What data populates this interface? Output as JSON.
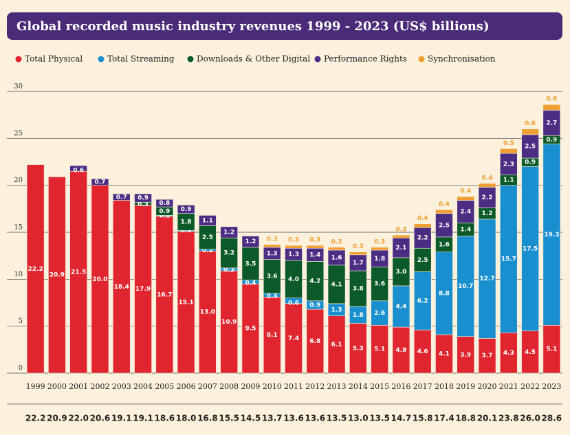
{
  "chart_data": {
    "type": "stacked_bar",
    "title": "Global recorded music industry revenues 1999 - 2023 (US$ billions)",
    "categories": [
      "1999",
      "2000",
      "2001",
      "2002",
      "2003",
      "2004",
      "2005",
      "2006",
      "2007",
      "2008",
      "2009",
      "2010",
      "2011",
      "2012",
      "2013",
      "2014",
      "2015",
      "2016",
      "2017",
      "2018",
      "2019",
      "2020",
      "2021",
      "2022",
      "2023"
    ],
    "series": [
      {
        "name": "Total Physical",
        "color": "#e0252f",
        "values": [
          22.2,
          20.9,
          21.5,
          20.0,
          18.4,
          17.9,
          16.7,
          15.1,
          13.0,
          10.9,
          9.5,
          8.1,
          7.4,
          6.8,
          6.1,
          5.3,
          5.1,
          4.9,
          4.6,
          4.1,
          3.9,
          3.7,
          4.3,
          4.5,
          5.1
        ],
        "value_labels": [
          "22.2",
          "20.9",
          "21.5",
          "20.0",
          "18.4",
          "17.9",
          "16.7",
          "15.1",
          "13.0",
          "10.9",
          "9.5",
          "8.1",
          "7.4",
          "6.8",
          "6.1",
          "5.3",
          "5.1",
          "4.9",
          "4.6",
          "4.1",
          "3.9",
          "3.7",
          "4.3",
          "4.5",
          "5.1"
        ]
      },
      {
        "name": "Total Streaming",
        "color": "#1a8fd0",
        "values": [
          null,
          null,
          null,
          null,
          null,
          null,
          0.1,
          0.1,
          0.2,
          0.3,
          0.4,
          0.4,
          0.6,
          0.9,
          1.3,
          1.8,
          2.6,
          4.4,
          6.2,
          8.8,
          10.7,
          12.7,
          15.7,
          17.5,
          19.3
        ],
        "value_labels": [
          null,
          null,
          null,
          null,
          null,
          null,
          "0.1",
          "0.1",
          "0.2",
          "0.3",
          "0.4",
          "0.4",
          "0.6",
          "0.9",
          "1.3",
          "1.8",
          "2.6",
          "4.4",
          "6.2",
          "8.8",
          "10.7",
          "12.7",
          "15.7",
          "17.5",
          "19.3"
        ]
      },
      {
        "name": "Downloads & Other Digital",
        "color": "#0c5a2a",
        "values": [
          null,
          null,
          null,
          null,
          null,
          0.3,
          0.9,
          1.8,
          2.5,
          3.2,
          3.5,
          3.6,
          4.0,
          4.2,
          4.1,
          3.8,
          3.6,
          3.0,
          2.5,
          1.6,
          1.4,
          1.2,
          1.1,
          0.9,
          0.9
        ],
        "value_labels": [
          null,
          null,
          null,
          null,
          null,
          "0.3",
          "0.9",
          "1.8",
          "2.5",
          "3.2",
          "3.5",
          "3.6",
          "4.0",
          "4.2",
          "4.1",
          "3.8",
          "3.6",
          "3.0",
          "2.5",
          "1.6",
          "1.4",
          "1.2",
          "1.1",
          "0.9",
          "0.9"
        ]
      },
      {
        "name": "Performance Rights",
        "color": "#4b2e84",
        "values": [
          null,
          null,
          0.6,
          0.7,
          0.7,
          0.9,
          0.8,
          0.9,
          1.1,
          1.2,
          1.2,
          1.3,
          1.3,
          1.4,
          1.6,
          1.7,
          1.8,
          2.1,
          2.2,
          2.5,
          2.4,
          2.2,
          2.3,
          2.5,
          2.7
        ],
        "value_labels": [
          null,
          null,
          "0.6",
          "0.7",
          "0.7",
          "0.9",
          "0.8",
          "0.9",
          "1.1",
          "1.2",
          "1.2",
          "1.3",
          "1.3",
          "1.4",
          "1.6",
          "1.7",
          "1.8",
          "2.1",
          "2.2",
          "2.5",
          "2.4",
          "2.2",
          "2.3",
          "2.5",
          "2.7"
        ]
      },
      {
        "name": "Synchronisation",
        "color": "#f0a032",
        "values": [
          null,
          null,
          null,
          null,
          null,
          null,
          null,
          null,
          null,
          null,
          null,
          0.3,
          0.3,
          0.3,
          0.3,
          0.3,
          0.3,
          0.3,
          0.4,
          0.4,
          0.4,
          0.4,
          0.5,
          0.6,
          0.6
        ],
        "value_labels": [
          null,
          null,
          null,
          null,
          null,
          null,
          null,
          null,
          null,
          null,
          null,
          "0.3",
          "0.3",
          "0.3",
          "0.3",
          "0.3",
          "0.3",
          "0.3",
          "0.4",
          "0.4",
          "0.4",
          "0.4",
          "0.5",
          "0.6",
          "0.6"
        ]
      }
    ],
    "totals": [
      22.2,
      20.9,
      22.0,
      20.6,
      19.1,
      19.1,
      18.6,
      18.0,
      16.8,
      15.5,
      14.5,
      13.7,
      13.6,
      13.6,
      13.5,
      13.0,
      13.5,
      14.7,
      15.8,
      17.4,
      18.8,
      20.1,
      23.8,
      26.0,
      28.6
    ],
    "total_labels": [
      "22.2",
      "20.9",
      "22.0",
      "20.6",
      "19.1",
      "19.1",
      "18.6",
      "18.0",
      "16.8",
      "15.5",
      "14.5",
      "13.7",
      "13.6",
      "13.6",
      "13.5",
      "13.0",
      "13.5",
      "14.7",
      "15.8",
      "17.4",
      "18.8",
      "20.1",
      "23.8",
      "26.0",
      "28.6"
    ],
    "ylim": [
      0,
      30
    ],
    "yticks": [
      0,
      5,
      10,
      15,
      20,
      25,
      30
    ],
    "grid": true,
    "legend": "top"
  }
}
